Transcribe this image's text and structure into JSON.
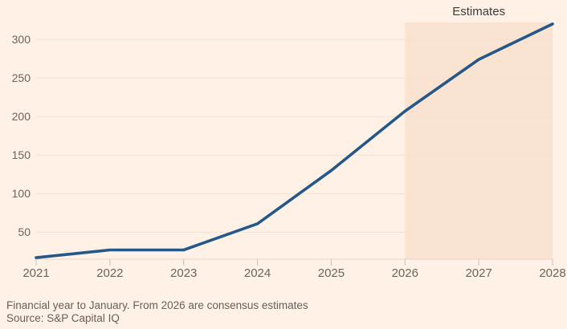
{
  "chart": {
    "estimates_label": "Estimates",
    "footer": {
      "note": "Financial year to January. From 2026 are consensus estimates",
      "source": "Source: S&P Capital IQ"
    }
  },
  "chart_data": {
    "type": "line",
    "title": "",
    "xlabel": "",
    "ylabel": "",
    "x": [
      2021,
      2022,
      2023,
      2024,
      2025,
      2026,
      2027,
      2028
    ],
    "series": [
      {
        "name": "value",
        "values": [
          17,
          27,
          27,
          61,
          130,
          207,
          274,
          320
        ]
      }
    ],
    "xlim": [
      2021,
      2028
    ],
    "ylim": [
      15,
      322
    ],
    "yticks": [
      50,
      100,
      150,
      200,
      250,
      300
    ],
    "grid": "horizontal",
    "legend_position": "none",
    "estimate_start_year": 2026,
    "annotations": [
      {
        "text": "Estimates",
        "position": "above-estimate-band"
      }
    ],
    "colors": {
      "background": "#fff1e5",
      "line": "#24578a",
      "estimate_band": "#fae3d1",
      "gridline": "#f3e2d5",
      "baseline": "#e4d6ca",
      "tick": "#ccc0b5",
      "axis_text": "#6b6458",
      "annotation_text": "#3e3a35",
      "footer_text": "#66605b"
    }
  }
}
